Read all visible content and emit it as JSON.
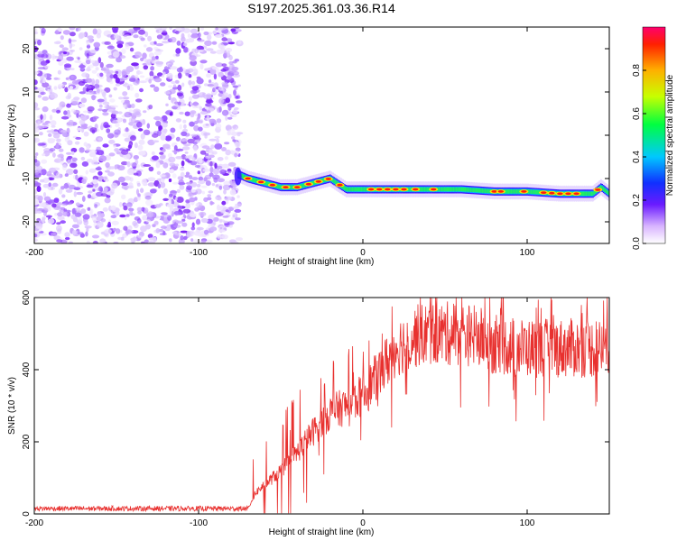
{
  "title": "S197.2025.361.03.36.R14",
  "chart_data": [
    {
      "type": "heatmap",
      "name": "spectrogram",
      "xlabel": "Height of straight line (km)",
      "ylabel": "Frequency (Hz)",
      "xlim": [
        -200,
        150
      ],
      "ylim": [
        -25,
        25
      ],
      "xticks": [
        -200,
        -100,
        0,
        100
      ],
      "xtick_labels": [
        "-200",
        "-100",
        "0",
        "100"
      ],
      "yticks": [
        20,
        10,
        0,
        -10,
        -20
      ],
      "ytick_labels": [
        "20",
        "10",
        "0",
        "-10",
        "-20"
      ],
      "noise_region_x": [
        -200,
        -75
      ],
      "signal_track": {
        "x": [
          -76,
          -70,
          -60,
          -50,
          -40,
          -30,
          -20,
          -10,
          0,
          10,
          20,
          40,
          60,
          80,
          100,
          120,
          140,
          145,
          150
        ],
        "freq": [
          -9,
          -10,
          -11,
          -12,
          -12,
          -11,
          -10,
          -12.5,
          -12.5,
          -12.5,
          -12.5,
          -12.5,
          -12.5,
          -13,
          -13,
          -13.5,
          -13.5,
          -12,
          -13.5
        ]
      },
      "colorbar": {
        "label": "Normalized spectral amplitude",
        "range": [
          0,
          1
        ],
        "ticks": [
          0.0,
          0.2,
          0.4,
          0.6,
          0.8
        ],
        "tick_labels": [
          "0.0",
          "0.2",
          "0.4",
          "0.6",
          "0.8"
        ]
      }
    },
    {
      "type": "line",
      "name": "snr",
      "xlabel": "Height of straight line (km)",
      "ylabel": "SNR (10 * v/v)",
      "xlim": [
        -200,
        150
      ],
      "ylim": [
        0,
        600
      ],
      "xticks": [
        -200,
        -100,
        0,
        100
      ],
      "xtick_labels": [
        "-200",
        "-100",
        "0",
        "100"
      ],
      "yticks": [
        0,
        200,
        400,
        600
      ],
      "ytick_labels": [
        "0",
        "200",
        "400",
        "600"
      ],
      "color": "#e8312f",
      "envelope": {
        "x": [
          -200,
          -70,
          -65,
          -50,
          -40,
          -30,
          -20,
          -10,
          0,
          10,
          20,
          30,
          40,
          50,
          60,
          70,
          80,
          100,
          120,
          140,
          150
        ],
        "y": [
          15,
          15,
          60,
          120,
          170,
          230,
          280,
          300,
          330,
          390,
          460,
          490,
          500,
          500,
          500,
          490,
          470,
          460,
          460,
          460,
          460
        ]
      }
    }
  ]
}
